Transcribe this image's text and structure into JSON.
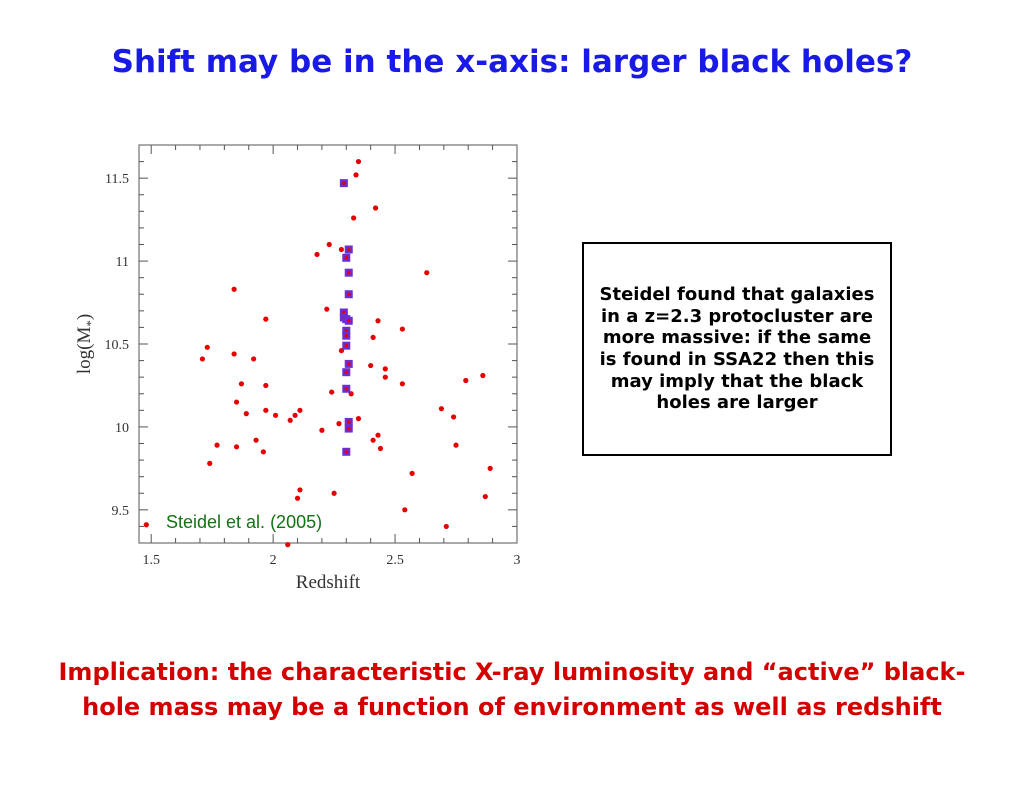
{
  "slide": {
    "title": "Shift may be in the x-axis: larger black holes?",
    "callout": "Steidel found that galaxies in a z=2.3 protocluster are more massive: if the same is found in SSA22 then this may imply that the black holes are larger",
    "implication": "Implication: the characteristic X-ray luminosity and “active” black-hole mass may be a function of environment as well as redshift",
    "colors": {
      "title": "#1a1ae6",
      "implication": "#d40000",
      "citation": "#127312"
    }
  },
  "chart_data": {
    "type": "scatter",
    "xlabel": "Redshift",
    "ylabel_base": "log(M",
    "ylabel_sub": "*",
    "ylabel_close": ")",
    "xlim": [
      1.45,
      3.0
    ],
    "ylim": [
      9.3,
      11.7
    ],
    "xticks": [
      1.5,
      2,
      2.5,
      3
    ],
    "xtick_labels": [
      "1.5",
      "2",
      "2.5",
      "3"
    ],
    "yticks": [
      9.5,
      10,
      10.5,
      11,
      11.5
    ],
    "ytick_labels": [
      "9.5",
      "10",
      "10.5",
      "11",
      "11.5"
    ],
    "annotation": "Steidel et al. (2005)",
    "grid": false,
    "series": [
      {
        "marker": "circle",
        "color": "#e60000",
        "points": [
          [
            1.48,
            9.41
          ],
          [
            1.71,
            10.41
          ],
          [
            1.73,
            10.48
          ],
          [
            1.74,
            9.78
          ],
          [
            1.77,
            9.89
          ],
          [
            1.84,
            10.83
          ],
          [
            1.84,
            10.44
          ],
          [
            1.85,
            10.15
          ],
          [
            1.85,
            9.88
          ],
          [
            1.87,
            10.26
          ],
          [
            1.89,
            10.08
          ],
          [
            1.92,
            10.41
          ],
          [
            1.93,
            9.92
          ],
          [
            1.96,
            9.85
          ],
          [
            1.97,
            10.65
          ],
          [
            1.97,
            10.25
          ],
          [
            1.97,
            10.1
          ],
          [
            2.01,
            10.07
          ],
          [
            2.07,
            10.04
          ],
          [
            2.09,
            10.07
          ],
          [
            2.1,
            9.57
          ],
          [
            2.11,
            9.62
          ],
          [
            2.11,
            10.1
          ],
          [
            2.06,
            9.29
          ],
          [
            2.18,
            11.04
          ],
          [
            2.2,
            9.98
          ],
          [
            2.22,
            10.71
          ],
          [
            2.23,
            11.1
          ],
          [
            2.24,
            10.21
          ],
          [
            2.25,
            9.6
          ],
          [
            2.27,
            10.02
          ],
          [
            2.28,
            11.07
          ],
          [
            2.28,
            10.46
          ],
          [
            2.32,
            10.2
          ],
          [
            2.33,
            11.26
          ],
          [
            2.34,
            11.52
          ],
          [
            2.35,
            11.6
          ],
          [
            2.35,
            10.05
          ],
          [
            2.4,
            10.37
          ],
          [
            2.41,
            9.92
          ],
          [
            2.41,
            10.54
          ],
          [
            2.42,
            11.32
          ],
          [
            2.43,
            10.64
          ],
          [
            2.43,
            9.95
          ],
          [
            2.44,
            9.87
          ],
          [
            2.46,
            10.35
          ],
          [
            2.46,
            10.3
          ],
          [
            2.53,
            10.59
          ],
          [
            2.53,
            10.26
          ],
          [
            2.54,
            9.5
          ],
          [
            2.57,
            9.72
          ],
          [
            2.63,
            10.93
          ],
          [
            2.69,
            10.11
          ],
          [
            2.71,
            9.4
          ],
          [
            2.74,
            10.06
          ],
          [
            2.75,
            9.89
          ],
          [
            2.79,
            10.28
          ],
          [
            2.86,
            10.31
          ],
          [
            2.87,
            9.58
          ],
          [
            2.89,
            9.75
          ]
        ]
      },
      {
        "marker": "square",
        "color": "#6b2ed6",
        "points": [
          [
            2.29,
            11.47
          ],
          [
            2.31,
            11.07
          ],
          [
            2.3,
            11.02
          ],
          [
            2.31,
            10.93
          ],
          [
            2.31,
            10.8
          ],
          [
            2.29,
            10.69
          ],
          [
            2.29,
            10.66
          ],
          [
            2.3,
            10.65
          ],
          [
            2.31,
            10.64
          ],
          [
            2.3,
            10.58
          ],
          [
            2.3,
            10.55
          ],
          [
            2.3,
            10.49
          ],
          [
            2.31,
            10.38
          ],
          [
            2.3,
            10.33
          ],
          [
            2.3,
            10.23
          ],
          [
            2.31,
            10.03
          ],
          [
            2.31,
            9.99
          ],
          [
            2.3,
            9.85
          ]
        ]
      }
    ]
  }
}
